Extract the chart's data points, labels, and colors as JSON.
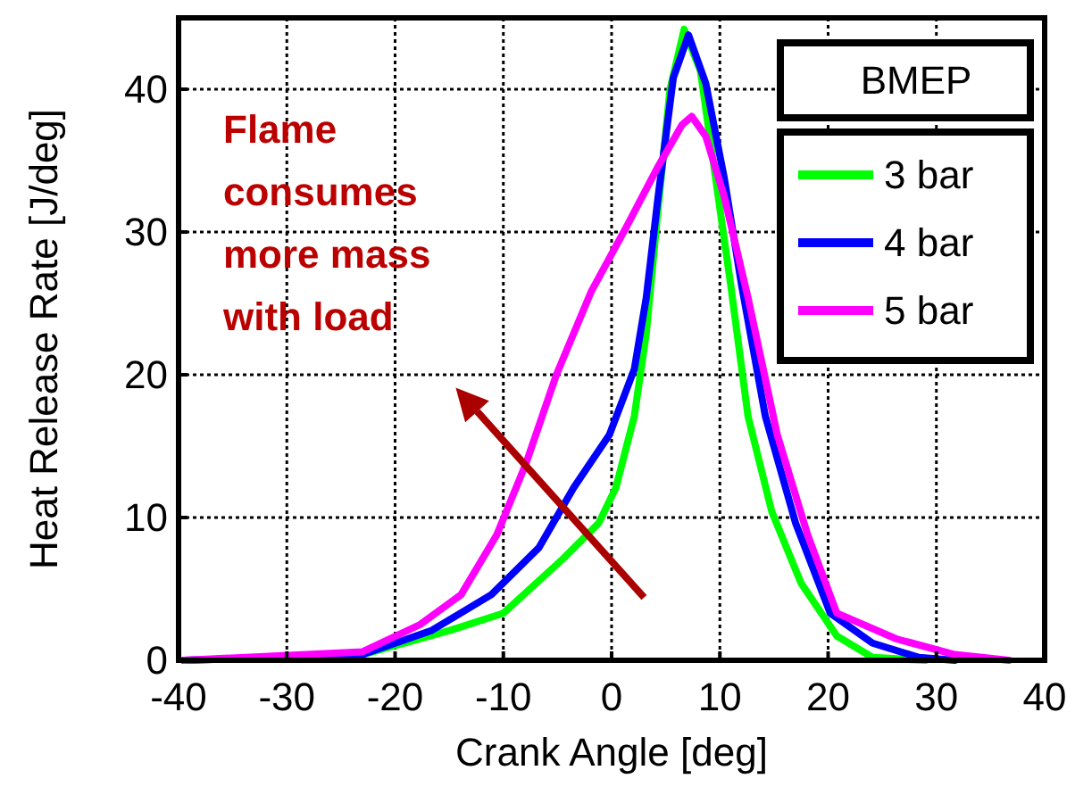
{
  "chart_data": {
    "type": "line",
    "xlabel": "Crank Angle [deg]",
    "ylabel": "Heat Release Rate [J/deg]",
    "legend_title": "BMEP",
    "legend": "top right",
    "grid": true,
    "line_style": "solid",
    "xlim": [
      -40,
      40
    ],
    "xticks": [
      -40,
      -30,
      -20,
      -10,
      0,
      10,
      20,
      30,
      40
    ],
    "ylim": [
      0,
      45
    ],
    "yticks": [
      0,
      10,
      20,
      30,
      40
    ],
    "annotations": [
      "Flame consumes more mass with load"
    ],
    "series": [
      {
        "name": "3 bar",
        "color": "#00ff00",
        "x": [
          -39.5,
          -23,
          -14.9,
          -10,
          -4.5,
          -1.2,
          0.4,
          2.1,
          3.2,
          4.3,
          5.4,
          6.7,
          8.2,
          9.6,
          11,
          12.6,
          14.8,
          17.5,
          20.8,
          24.1,
          29
        ],
        "values": [
          0,
          0.4,
          2.1,
          3.3,
          7.1,
          9.6,
          12.1,
          17.1,
          22.9,
          31.7,
          40,
          44.2,
          41.3,
          33.8,
          26.3,
          17.1,
          10.4,
          5.4,
          1.7,
          0.2,
          0
        ]
      },
      {
        "name": "4 bar",
        "color": "#0000ff",
        "x": [
          -39.5,
          -23,
          -16.6,
          -11.1,
          -6.7,
          -3.5,
          -0.2,
          2.1,
          3.2,
          4.3,
          5.7,
          7.1,
          8.7,
          10.4,
          12,
          14.2,
          17,
          20.2,
          24.1,
          28.4,
          31.7
        ],
        "values": [
          0,
          0.4,
          2.1,
          4.6,
          7.9,
          12.1,
          15.8,
          20.4,
          25.4,
          32.5,
          40.8,
          43.8,
          40.4,
          33.8,
          26.3,
          17.1,
          9.6,
          3.3,
          1.2,
          0.2,
          0
        ]
      },
      {
        "name": "5 bar",
        "color": "#ff00ff",
        "x": [
          -39.5,
          -23,
          -17.7,
          -13.9,
          -10.6,
          -7.9,
          -5.1,
          -1.9,
          1.4,
          4.3,
          6.5,
          7.4,
          8.7,
          10.4,
          12.6,
          15.3,
          18.1,
          20.8,
          26.3,
          31.7,
          36.7
        ],
        "values": [
          0,
          0.6,
          2.5,
          4.6,
          8.8,
          13.8,
          20,
          25.8,
          30.4,
          34.6,
          37.5,
          38.1,
          36.7,
          32.5,
          25.4,
          15.8,
          8.8,
          3.3,
          1.5,
          0.4,
          0
        ]
      }
    ]
  }
}
